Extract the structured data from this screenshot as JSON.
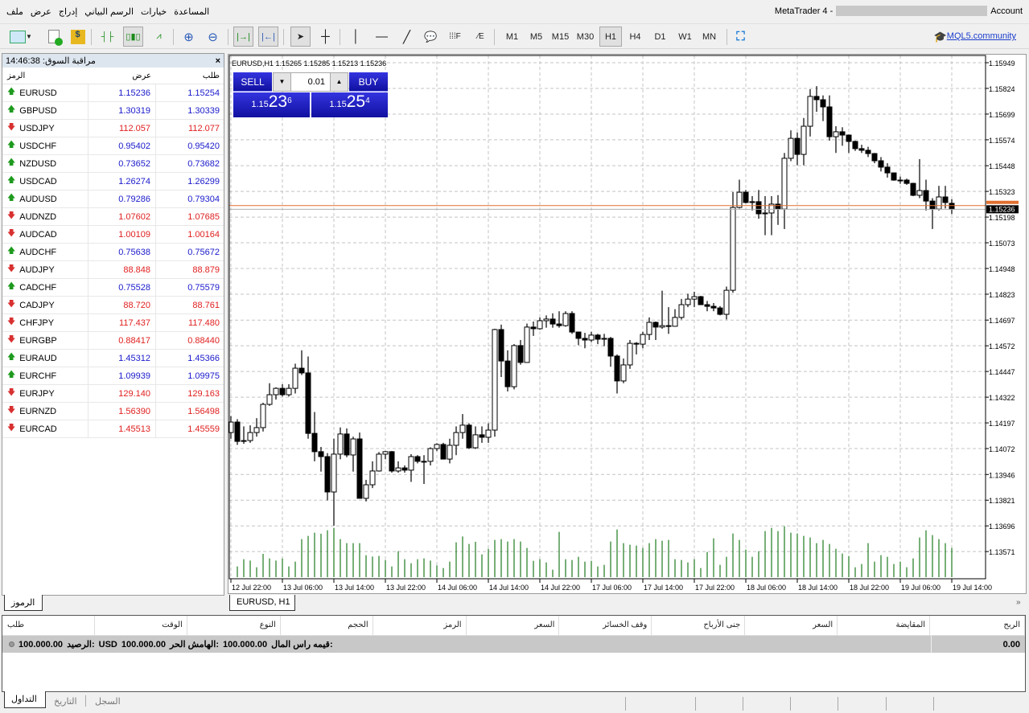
{
  "menu": {
    "items": [
      "ملف",
      "عرض",
      "إدراج",
      "الرسم البياني",
      "خيارات",
      "المساعدة"
    ]
  },
  "window": {
    "title_prefix": "MetaTrader 4 -",
    "title_suffix": "Account"
  },
  "toolbar": {
    "icons": [
      "new-chart-icon",
      "new-order-icon",
      "auto-trading-icon",
      "bar-chart-icon",
      "candlestick-icon",
      "line-chart-icon",
      "zoom-in-icon",
      "zoom-out-icon",
      "chart-shift-icon",
      "autoscroll-icon",
      "cursor-icon",
      "crosshair-icon",
      "vertical-line-icon",
      "horizontal-line-icon",
      "trendline-icon",
      "text-label-icon",
      "fibonacci-icon",
      "period-separator-icon",
      "fullscreen-icon"
    ],
    "timeframes": [
      "M1",
      "M5",
      "M15",
      "M30",
      "H1",
      "H4",
      "D1",
      "W1",
      "MN"
    ],
    "active_timeframe": "H1",
    "community_link": "MQL5.community"
  },
  "market_watch": {
    "title": "مراقبة السوق: 14:46:38",
    "columns": {
      "symbol": "الرمز",
      "bid": "عرض",
      "ask": "طلب"
    },
    "rows": [
      {
        "symbol": "EURUSD",
        "bid": "1.15236",
        "ask": "1.15254",
        "dir": "up"
      },
      {
        "symbol": "GBPUSD",
        "bid": "1.30319",
        "ask": "1.30339",
        "dir": "up"
      },
      {
        "symbol": "USDJPY",
        "bid": "112.057",
        "ask": "112.077",
        "dir": "down"
      },
      {
        "symbol": "USDCHF",
        "bid": "0.95402",
        "ask": "0.95420",
        "dir": "up"
      },
      {
        "symbol": "NZDUSD",
        "bid": "0.73652",
        "ask": "0.73682",
        "dir": "up"
      },
      {
        "symbol": "USDCAD",
        "bid": "1.26274",
        "ask": "1.26299",
        "dir": "up"
      },
      {
        "symbol": "AUDUSD",
        "bid": "0.79286",
        "ask": "0.79304",
        "dir": "up"
      },
      {
        "symbol": "AUDNZD",
        "bid": "1.07602",
        "ask": "1.07685",
        "dir": "down"
      },
      {
        "symbol": "AUDCAD",
        "bid": "1.00109",
        "ask": "1.00164",
        "dir": "down"
      },
      {
        "symbol": "AUDCHF",
        "bid": "0.75638",
        "ask": "0.75672",
        "dir": "up"
      },
      {
        "symbol": "AUDJPY",
        "bid": "88.848",
        "ask": "88.879",
        "dir": "down"
      },
      {
        "symbol": "CADCHF",
        "bid": "0.75528",
        "ask": "0.75579",
        "dir": "up"
      },
      {
        "symbol": "CADJPY",
        "bid": "88.720",
        "ask": "88.761",
        "dir": "down"
      },
      {
        "symbol": "CHFJPY",
        "bid": "117.437",
        "ask": "117.480",
        "dir": "down"
      },
      {
        "symbol": "EURGBP",
        "bid": "0.88417",
        "ask": "0.88440",
        "dir": "down"
      },
      {
        "symbol": "EURAUD",
        "bid": "1.45312",
        "ask": "1.45366",
        "dir": "up"
      },
      {
        "symbol": "EURCHF",
        "bid": "1.09939",
        "ask": "1.09975",
        "dir": "up"
      },
      {
        "symbol": "EURJPY",
        "bid": "129.140",
        "ask": "129.163",
        "dir": "down"
      },
      {
        "symbol": "EURNZD",
        "bid": "1.56390",
        "ask": "1.56498",
        "dir": "down"
      },
      {
        "symbol": "EURCAD",
        "bid": "1.45513",
        "ask": "1.45559",
        "dir": "down"
      }
    ],
    "tab": "الرموز"
  },
  "one_click": {
    "sell": "SELL",
    "buy": "BUY",
    "lot": "0.01",
    "sell_price": {
      "prefix": "1.15",
      "big": "23",
      "small": "6"
    },
    "buy_price": {
      "prefix": "1.15",
      "big": "25",
      "small": "4"
    }
  },
  "chart_tab": "EURUSD, H1",
  "colors": {
    "up_text": "#1a1acc",
    "down_text": "#e02020",
    "ask_line": "#e07030",
    "bid_line": "#b0b0b0",
    "volume": "#1e7a1e",
    "sell_buy": "#1a1ad0"
  },
  "chart_data": {
    "type": "candlestick",
    "title": "EURUSD,H1  1.15265 1.15285 1.15213 1.15236",
    "ylim": [
      1.1351,
      1.16
    ],
    "grid": true,
    "price_ticks": [
      "1.15949",
      "1.15824",
      "1.15699",
      "1.15574",
      "1.15448",
      "1.15323",
      "1.15198",
      "1.15073",
      "1.14948",
      "1.14823",
      "1.14697",
      "1.14572",
      "1.14447",
      "1.14322",
      "1.14197",
      "1.14072",
      "1.13946",
      "1.13821",
      "1.13696",
      "1.13571"
    ],
    "time_labels": [
      "12 Jul 22:00",
      "13 Jul 06:00",
      "13 Jul 14:00",
      "13 Jul 22:00",
      "14 Jul 06:00",
      "14 Jul 14:00",
      "14 Jul 22:00",
      "17 Jul 06:00",
      "17 Jul 14:00",
      "17 Jul 22:00",
      "18 Jul 06:00",
      "18 Jul 14:00",
      "18 Jul 22:00",
      "19 Jul 06:00",
      "19 Jul 14:00"
    ],
    "bars_per_label": 8,
    "bid": 1.15236,
    "ask": 1.15254,
    "bid_label": "1.15236",
    "ohlc": [
      [
        1.1415,
        1.1423,
        1.1412,
        1.14201
      ],
      [
        1.14201,
        1.14215,
        1.1409,
        1.14107
      ],
      [
        1.14107,
        1.1418,
        1.14095,
        1.14111
      ],
      [
        1.14111,
        1.14185,
        1.141,
        1.1415
      ],
      [
        1.1415,
        1.1422,
        1.1413,
        1.14174
      ],
      [
        1.14174,
        1.14295,
        1.14155,
        1.14287
      ],
      [
        1.14287,
        1.1439,
        1.1428,
        1.14334
      ],
      [
        1.14334,
        1.1437,
        1.1431,
        1.14365
      ],
      [
        1.14365,
        1.14385,
        1.14325,
        1.14334
      ],
      [
        1.14334,
        1.14385,
        1.14325,
        1.14365
      ],
      [
        1.14365,
        1.14485,
        1.1434,
        1.14463
      ],
      [
        1.14463,
        1.1455,
        1.1443,
        1.1444
      ],
      [
        1.1444,
        1.1452,
        1.1412,
        1.14146
      ],
      [
        1.14146,
        1.1425,
        1.1401,
        1.14057
      ],
      [
        1.14057,
        1.1408,
        1.1396,
        1.14033
      ],
      [
        1.14033,
        1.1405,
        1.1382,
        1.13861
      ],
      [
        1.13861,
        1.1412,
        1.13697,
        1.14045
      ],
      [
        1.14045,
        1.14175,
        1.1402,
        1.14143
      ],
      [
        1.14143,
        1.1417,
        1.1403,
        1.14041
      ],
      [
        1.14041,
        1.1413,
        1.1396,
        1.14119
      ],
      [
        1.14119,
        1.1415,
        1.1383,
        1.1383
      ],
      [
        1.1383,
        1.1392,
        1.13815,
        1.13896
      ],
      [
        1.13896,
        1.1401,
        1.1388,
        1.13963
      ],
      [
        1.13963,
        1.14055,
        1.1396,
        1.14045
      ],
      [
        1.14045,
        1.1406,
        1.1402,
        1.14057
      ],
      [
        1.14057,
        1.1406,
        1.13955,
        1.13963
      ],
      [
        1.13963,
        1.1401,
        1.13955,
        1.13978
      ],
      [
        1.13978,
        1.1399,
        1.13955,
        1.13967
      ],
      [
        1.13967,
        1.14045,
        1.1391,
        1.14033
      ],
      [
        1.14033,
        1.1404,
        1.14,
        1.1401
      ],
      [
        1.1401,
        1.1404,
        1.139,
        1.1401
      ],
      [
        1.1401,
        1.14078,
        1.1399,
        1.14072
      ],
      [
        1.14072,
        1.14098,
        1.1406,
        1.14092
      ],
      [
        1.14092,
        1.141,
        1.14021,
        1.14021
      ],
      [
        1.14021,
        1.1412,
        1.14,
        1.14088
      ],
      [
        1.14088,
        1.1418,
        1.1404,
        1.1415
      ],
      [
        1.1415,
        1.1424,
        1.1412,
        1.14186
      ],
      [
        1.14186,
        1.14195,
        1.1407,
        1.14076
      ],
      [
        1.14076,
        1.1418,
        1.1407,
        1.14139
      ],
      [
        1.14139,
        1.1418,
        1.141,
        1.14127
      ],
      [
        1.14127,
        1.14195,
        1.141,
        1.14162
      ],
      [
        1.14162,
        1.14655,
        1.1413,
        1.14651
      ],
      [
        1.14651,
        1.14675,
        1.1442,
        1.14498
      ],
      [
        1.14498,
        1.1455,
        1.1435,
        1.14373
      ],
      [
        1.14373,
        1.1458,
        1.1436,
        1.14573
      ],
      [
        1.14573,
        1.146,
        1.1448,
        1.14491
      ],
      [
        1.14491,
        1.1468,
        1.1449,
        1.14663
      ],
      [
        1.14663,
        1.1469,
        1.1462,
        1.14655
      ],
      [
        1.14655,
        1.1471,
        1.1465,
        1.14694
      ],
      [
        1.14694,
        1.1472,
        1.1466,
        1.14702
      ],
      [
        1.14702,
        1.1473,
        1.1466,
        1.14678
      ],
      [
        1.14678,
        1.1474,
        1.1466,
        1.1467
      ],
      [
        1.1467,
        1.1474,
        1.14665,
        1.14729
      ],
      [
        1.14729,
        1.1474,
        1.1463,
        1.14639
      ],
      [
        1.14639,
        1.1464,
        1.14575,
        1.14608
      ],
      [
        1.14608,
        1.14635,
        1.1456,
        1.146
      ],
      [
        1.146,
        1.1464,
        1.1459,
        1.14624
      ],
      [
        1.14624,
        1.1463,
        1.1458,
        1.14604
      ],
      [
        1.14604,
        1.1463,
        1.1457,
        1.14608
      ],
      [
        1.14608,
        1.14615,
        1.1447,
        1.14522
      ],
      [
        1.14522,
        1.1453,
        1.1434,
        1.14401
      ],
      [
        1.14401,
        1.1451,
        1.1439,
        1.14479
      ],
      [
        1.14479,
        1.146,
        1.1446,
        1.14584
      ],
      [
        1.14584,
        1.1459,
        1.1453,
        1.1458
      ],
      [
        1.1458,
        1.1464,
        1.1456,
        1.14627
      ],
      [
        1.14627,
        1.1471,
        1.146,
        1.14686
      ],
      [
        1.14686,
        1.1469,
        1.146,
        1.14663
      ],
      [
        1.14663,
        1.1484,
        1.14655,
        1.1467
      ],
      [
        1.1467,
        1.1476,
        1.1463,
        1.14667
      ],
      [
        1.14667,
        1.1475,
        1.14665,
        1.1471
      ],
      [
        1.1471,
        1.148,
        1.147,
        1.14772
      ],
      [
        1.14772,
        1.14825,
        1.1476,
        1.14799
      ],
      [
        1.14799,
        1.14835,
        1.1476,
        1.14811
      ],
      [
        1.14811,
        1.14815,
        1.1477,
        1.14772
      ],
      [
        1.14772,
        1.1479,
        1.1474,
        1.14764
      ],
      [
        1.14764,
        1.1478,
        1.1474,
        1.14756
      ],
      [
        1.14756,
        1.14765,
        1.1472,
        1.14725
      ],
      [
        1.14725,
        1.1486,
        1.147,
        1.14842
      ],
      [
        1.14842,
        1.1532,
        1.1483,
        1.15245
      ],
      [
        1.15245,
        1.1538,
        1.1524,
        1.15319
      ],
      [
        1.15319,
        1.1533,
        1.15265,
        1.15269
      ],
      [
        1.15269,
        1.153,
        1.1523,
        1.15273
      ],
      [
        1.15273,
        1.1533,
        1.1519,
        1.15214
      ],
      [
        1.15214,
        1.153,
        1.1511,
        1.15218
      ],
      [
        1.15218,
        1.153,
        1.1511,
        1.15261
      ],
      [
        1.15261,
        1.15305,
        1.1516,
        1.15237
      ],
      [
        1.15237,
        1.1551,
        1.1514,
        1.15484
      ],
      [
        1.15484,
        1.1562,
        1.1547,
        1.15581
      ],
      [
        1.15581,
        1.1561,
        1.1545,
        1.15503
      ],
      [
        1.15503,
        1.1568,
        1.1545,
        1.1564
      ],
      [
        1.1564,
        1.1582,
        1.1559,
        1.15785
      ],
      [
        1.15785,
        1.15835,
        1.1571,
        1.15769
      ],
      [
        1.15769,
        1.1579,
        1.15665,
        1.15734
      ],
      [
        1.15734,
        1.1579,
        1.1557,
        1.15589
      ],
      [
        1.15589,
        1.1564,
        1.1551,
        1.15613
      ],
      [
        1.15613,
        1.15635,
        1.15545,
        1.15597
      ],
      [
        1.15597,
        1.156,
        1.1551,
        1.15566
      ],
      [
        1.15566,
        1.1557,
        1.1552,
        1.15531
      ],
      [
        1.15531,
        1.1555,
        1.1551,
        1.15523
      ],
      [
        1.15523,
        1.1554,
        1.1549,
        1.15507
      ],
      [
        1.15507,
        1.1551,
        1.1546,
        1.15472
      ],
      [
        1.15472,
        1.1549,
        1.1542,
        1.15441
      ],
      [
        1.15441,
        1.1546,
        1.1539,
        1.15413
      ],
      [
        1.15413,
        1.15415,
        1.15375,
        1.15378
      ],
      [
        1.15378,
        1.15395,
        1.1536,
        1.15378
      ],
      [
        1.15378,
        1.15385,
        1.15355,
        1.15362
      ],
      [
        1.15362,
        1.15365,
        1.153,
        1.15304
      ],
      [
        1.15304,
        1.1548,
        1.1529,
        1.15327
      ],
      [
        1.15327,
        1.1538,
        1.1523,
        1.15276
      ],
      [
        1.15276,
        1.1529,
        1.1514,
        1.15237
      ],
      [
        1.15237,
        1.1535,
        1.1523,
        1.15296
      ],
      [
        1.15296,
        1.1535,
        1.1524,
        1.15269
      ],
      [
        1.15265,
        1.15285,
        1.15213,
        1.15236
      ]
    ],
    "volume": [
      null,
      40,
      67,
      62,
      37,
      87,
      70,
      62,
      70,
      40,
      58,
      142,
      154,
      166,
      162,
      175,
      184,
      142,
      127,
      127,
      127,
      82,
      77,
      79,
      64,
      40,
      97,
      67,
      52,
      67,
      70,
      62,
      44,
      34,
      58,
      130,
      152,
      124,
      132,
      85,
      106,
      139,
      142,
      133,
      142,
      133,
      109,
      61,
      67,
      55,
      28,
      169,
      67,
      64,
      76,
      58,
      61,
      40,
      46,
      133,
      178,
      127,
      121,
      118,
      109,
      127,
      142,
      136,
      139,
      67,
      64,
      55,
      67,
      34,
      94,
      145,
      46,
      76,
      163,
      139,
      103,
      76,
      97,
      172,
      184,
      172,
      190,
      166,
      163,
      154,
      148,
      127,
      139,
      124,
      106,
      88,
      79,
      37,
      49,
      127,
      58,
      82,
      76,
      49,
      58,
      37,
      70,
      148,
      175,
      157,
      142,
      127,
      109
    ]
  },
  "terminal": {
    "columns": [
      "الربح",
      "المقايضة",
      "السعر",
      "جنى الأرباح",
      "وقف الخسائر",
      "السعر",
      "الرمز",
      "الحجم",
      "النوع",
      "الوقت",
      "طلب"
    ],
    "balance_parts": [
      "100.000.00",
      "الرصيد:",
      "USD",
      "100.000.00",
      "الهامش الحر:",
      "100.000.00",
      "قيمه راس المال:"
    ],
    "profit": "0.00",
    "tabs": [
      "التداول",
      "التاريخ",
      "السجل"
    ],
    "collapse": "»"
  }
}
